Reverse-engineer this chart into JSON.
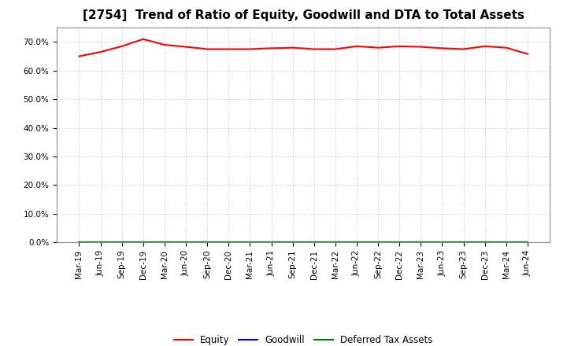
{
  "title": "[2754]  Trend of Ratio of Equity, Goodwill and DTA to Total Assets",
  "x_labels": [
    "Mar-19",
    "Jun-19",
    "Sep-19",
    "Dec-19",
    "Mar-20",
    "Jun-20",
    "Sep-20",
    "Dec-20",
    "Mar-21",
    "Jun-21",
    "Sep-21",
    "Dec-21",
    "Mar-22",
    "Jun-22",
    "Sep-22",
    "Dec-22",
    "Mar-23",
    "Jun-23",
    "Sep-23",
    "Dec-23",
    "Mar-24",
    "Jun-24"
  ],
  "equity": [
    65.0,
    66.5,
    68.5,
    71.0,
    69.0,
    68.3,
    67.5,
    67.5,
    67.5,
    67.8,
    68.0,
    67.5,
    67.5,
    68.5,
    68.0,
    68.5,
    68.3,
    67.8,
    67.5,
    68.5,
    68.0,
    65.8
  ],
  "goodwill": [
    0.0,
    0.0,
    0.0,
    0.0,
    0.0,
    0.0,
    0.0,
    0.0,
    0.0,
    0.0,
    0.0,
    0.0,
    0.0,
    0.0,
    0.0,
    0.0,
    0.0,
    0.0,
    0.0,
    0.0,
    0.0,
    0.0
  ],
  "dta": [
    0.0,
    0.0,
    0.0,
    0.0,
    0.0,
    0.0,
    0.0,
    0.0,
    0.0,
    0.0,
    0.0,
    0.0,
    0.0,
    0.0,
    0.0,
    0.0,
    0.0,
    0.0,
    0.0,
    0.0,
    0.0,
    0.0
  ],
  "equity_color": "#FF0000",
  "goodwill_color": "#0000FF",
  "dta_color": "#008000",
  "ylim": [
    0,
    75
  ],
  "yticks": [
    0,
    10,
    20,
    30,
    40,
    50,
    60,
    70
  ],
  "background_color": "#FFFFFF",
  "plot_bg_color": "#FFFFFF",
  "grid_color": "#BBBBBB",
  "title_fontsize": 11,
  "tick_fontsize": 7.5,
  "legend_labels": [
    "Equity",
    "Goodwill",
    "Deferred Tax Assets"
  ]
}
